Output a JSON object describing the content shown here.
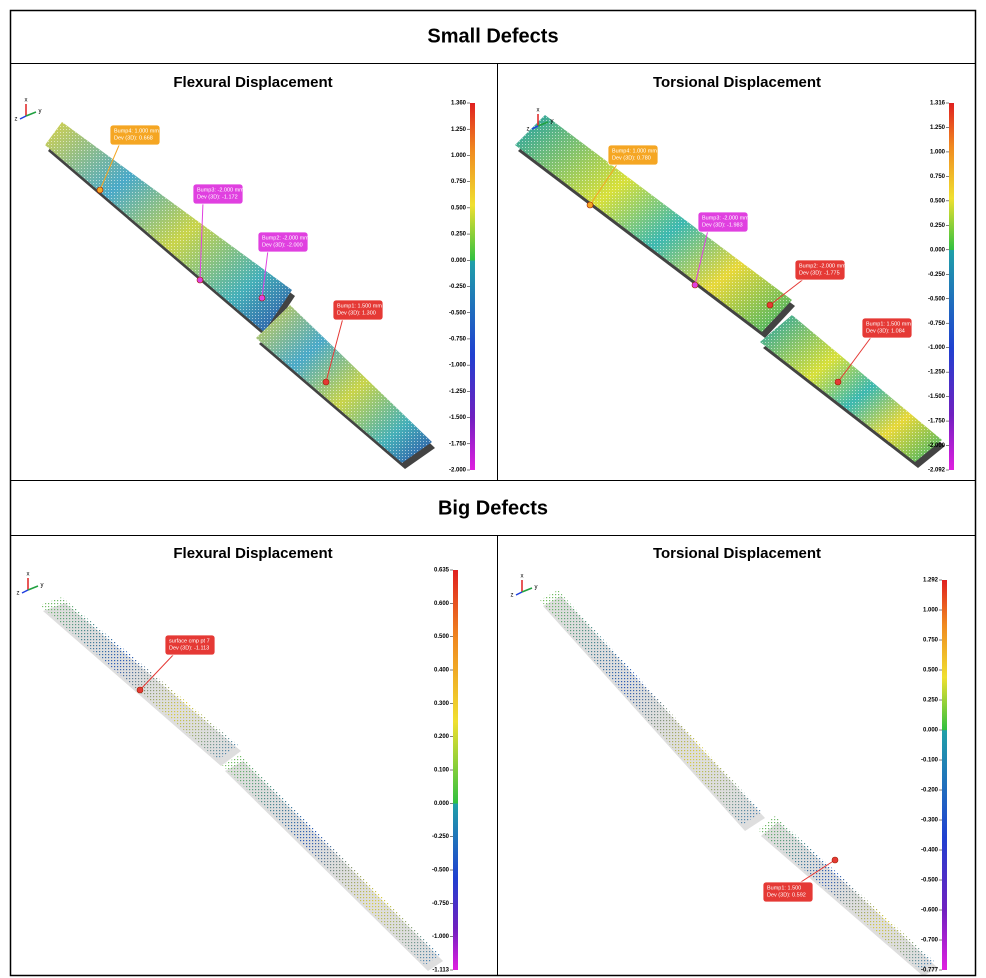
{
  "sections": [
    {
      "title": "Small Defects",
      "panels": [
        {
          "title": "Flexural Displacement",
          "axes": [
            "x",
            "y",
            "z"
          ],
          "scale": [
            "1.360",
            "1.250",
            "1.000",
            "0.750",
            "0.500",
            "0.250",
            "0.000",
            "-0.250",
            "-0.500",
            "-0.750",
            "-1.000",
            "-1.250",
            "-1.500",
            "-1.750",
            "-2.000"
          ],
          "callouts": [
            {
              "lines": [
                "Bump4: 1.000 mm",
                "Dev (3D): 0.668"
              ]
            },
            {
              "lines": [
                "Bump3: -2.000 mm",
                "Dev (3D): -1.172"
              ]
            },
            {
              "lines": [
                "Bump2: -2.000 mm",
                "Dev (3D): -2.000"
              ]
            },
            {
              "lines": [
                "Bump1: 1.500 mm",
                "Dev (3D): 1.300"
              ]
            }
          ]
        },
        {
          "title": "Torsional Displacement",
          "axes": [
            "x",
            "y",
            "z"
          ],
          "scale": [
            "1.316",
            "1.250",
            "1.000",
            "0.750",
            "0.500",
            "0.250",
            "0.000",
            "-0.250",
            "-0.500",
            "-0.750",
            "-1.000",
            "-1.250",
            "-1.500",
            "-1.750",
            "-2.000",
            "-2.092"
          ],
          "callouts": [
            {
              "lines": [
                "Bump4: 1.000 mm",
                "Dev (3D): 0.780"
              ]
            },
            {
              "lines": [
                "Bump3: -2.000 mm",
                "Dev (3D): -1.983"
              ]
            },
            {
              "lines": [
                "Bump2: -2.000 mm",
                "Dev (3D): -1.775"
              ]
            },
            {
              "lines": [
                "Bump1: 1.500 mm",
                "Dev (3D): 1.084"
              ]
            }
          ]
        }
      ]
    },
    {
      "title": "Big Defects",
      "panels": [
        {
          "title": "Flexural Displacement",
          "axes": [
            "x",
            "y",
            "z"
          ],
          "scale": [
            "0.635",
            "0.600",
            "0.500",
            "0.400",
            "0.300",
            "0.200",
            "0.100",
            "0.000",
            "-0.250",
            "-0.500",
            "-0.750",
            "-1.000",
            "-1.113"
          ],
          "callouts": [
            {
              "lines": [
                "surface cmp pt 7",
                "Dev (3D): -1.113"
              ]
            }
          ]
        },
        {
          "title": "Torsional Displacement",
          "axes": [
            "x",
            "y",
            "z"
          ],
          "scale": [
            "1.292",
            "1.000",
            "0.750",
            "0.500",
            "0.250",
            "0.000",
            "-0.100",
            "-0.200",
            "-0.300",
            "-0.400",
            "-0.500",
            "-0.600",
            "-0.700",
            "-0.777"
          ],
          "callouts": [
            {
              "lines": [
                "Bump1: 1.500",
                "Dev (3D): 0.592"
              ]
            }
          ]
        }
      ]
    }
  ]
}
